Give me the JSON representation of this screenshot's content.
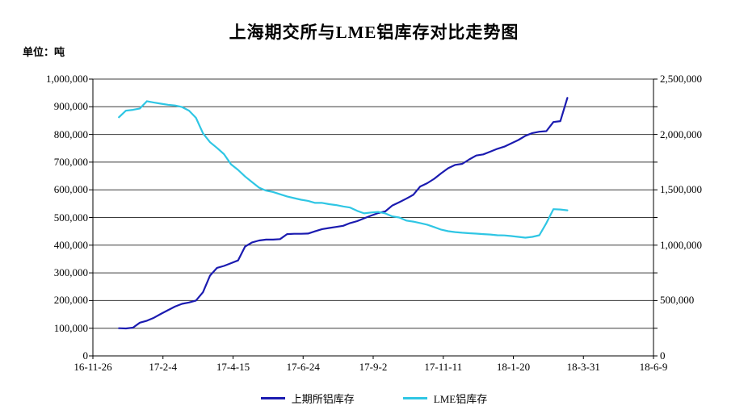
{
  "header": {
    "title": "上海期交所与LME铝库存对比走势图",
    "unit_label": "单位：吨"
  },
  "legend": [
    {
      "label": "上期所铝库存",
      "color": "#1b1bb0"
    },
    {
      "label": "LME铝库存",
      "color": "#2fc6e4"
    }
  ],
  "colors": {
    "series_shfe": "#1b1bb0",
    "series_lme": "#2fc6e4",
    "gridline": "#3c3c3c",
    "axis": "#000000",
    "background": "#ffffff"
  },
  "chart_data": {
    "type": "line",
    "title": "上海期交所与LME铝库存对比走势图",
    "unit": "吨",
    "grid": true,
    "legend_position": "bottom",
    "x_axis": {
      "tick_labels": [
        "16-11-26",
        "17-2-4",
        "17-4-15",
        "17-6-24",
        "17-9-2",
        "17-11-11",
        "18-1-20",
        "18-3-31",
        "18-6-9"
      ],
      "range_days": [
        0,
        560
      ],
      "tick_interval_days": 70
    },
    "y_axis_left": {
      "min": 0,
      "max": 1000000,
      "tick_step": 100000,
      "tick_labels": [
        "0",
        "100,000",
        "200,000",
        "300,000",
        "400,000",
        "500,000",
        "600,000",
        "700,000",
        "800,000",
        "900,000",
        "1,000,000"
      ]
    },
    "y_axis_right": {
      "min": 0,
      "max": 2500000,
      "tick_step": 250000,
      "label_step": 500000,
      "tick_labels": [
        "0",
        "500,000",
        "1,000,000",
        "1,500,000",
        "2,000,000",
        "2,500,000"
      ]
    },
    "x_days": [
      26,
      33,
      40,
      47,
      54,
      61,
      68,
      75,
      82,
      89,
      96,
      103,
      110,
      117,
      124,
      131,
      138,
      145,
      152,
      159,
      166,
      173,
      180,
      187,
      194,
      201,
      208,
      215,
      222,
      229,
      236,
      243,
      250,
      257,
      264,
      271,
      278,
      285,
      292,
      299,
      306,
      313,
      320,
      327,
      334,
      341,
      348,
      355,
      362,
      369,
      376,
      383,
      390,
      397,
      404,
      411,
      418,
      425,
      432,
      439,
      446,
      453,
      460,
      467,
      474
    ],
    "series": [
      {
        "name": "上期所铝库存",
        "axis": "left",
        "color": "#1b1bb0",
        "values": [
          100000,
          99000,
          102000,
          120000,
          127000,
          138000,
          152000,
          165000,
          178000,
          188000,
          193000,
          200000,
          230000,
          290000,
          318000,
          325000,
          335000,
          345000,
          395000,
          410000,
          417000,
          420000,
          420000,
          422000,
          440000,
          441000,
          441000,
          442000,
          450000,
          458000,
          462000,
          466000,
          470000,
          480000,
          487000,
          497000,
          507000,
          516000,
          522000,
          543000,
          555000,
          568000,
          582000,
          612000,
          624000,
          640000,
          660000,
          678000,
          690000,
          694000,
          710000,
          724000,
          728000,
          738000,
          748000,
          756000,
          768000,
          780000,
          795000,
          805000,
          810000,
          812000,
          845000,
          848000,
          932000
        ]
      },
      {
        "name": "LME铝库存",
        "axis": "right",
        "color": "#2fc6e4",
        "values": [
          2155000,
          2215000,
          2222000,
          2235000,
          2300000,
          2288000,
          2278000,
          2268000,
          2262000,
          2248000,
          2215000,
          2150000,
          2010000,
          1930000,
          1878000,
          1822000,
          1730000,
          1680000,
          1620000,
          1570000,
          1520000,
          1493000,
          1480000,
          1460000,
          1440000,
          1425000,
          1410000,
          1400000,
          1382000,
          1382000,
          1370000,
          1362000,
          1350000,
          1340000,
          1310000,
          1287000,
          1295000,
          1300000,
          1287000,
          1260000,
          1250000,
          1222000,
          1213000,
          1200000,
          1185000,
          1163000,
          1140000,
          1126000,
          1118000,
          1112000,
          1108000,
          1104000,
          1100000,
          1096000,
          1090000,
          1088000,
          1082000,
          1075000,
          1068000,
          1075000,
          1090000,
          1200000,
          1325000,
          1322000,
          1315000
        ]
      }
    ]
  }
}
